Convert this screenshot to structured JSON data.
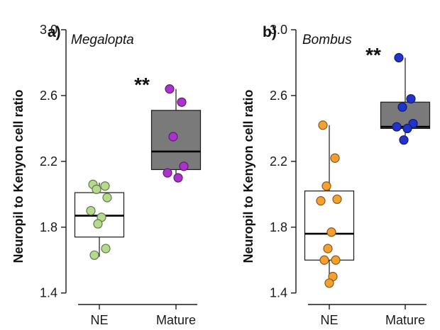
{
  "chart_data": [
    {
      "type": "box",
      "panel_label": "a)",
      "title": "Megalopta",
      "ylabel": "Neuropil to Kenyon cell ratio",
      "xlabel": "",
      "categories": [
        "NE",
        "Mature"
      ],
      "ylim": [
        1.33,
        3.0
      ],
      "yticks": [
        "1.4",
        "1.8",
        "2.2",
        "2.6",
        "3.0"
      ],
      "significance": "**",
      "groups": [
        {
          "name": "NE",
          "box": {
            "min": 1.62,
            "q1": 1.74,
            "median": 1.87,
            "q3": 2.01,
            "max": 2.07
          },
          "fill": "#ffffff",
          "point_color": "#b5d98d",
          "points": [
            2.06,
            2.05,
            2.03,
            1.98,
            1.9,
            1.86,
            1.82,
            1.67,
            1.63
          ]
        },
        {
          "name": "Mature",
          "box": {
            "min": 2.1,
            "q1": 2.15,
            "median": 2.26,
            "q3": 2.51,
            "max": 2.64
          },
          "fill": "#7a7a7a",
          "point_color": "#aa33cc",
          "points": [
            2.64,
            2.56,
            2.35,
            2.17,
            2.13,
            2.1
          ]
        }
      ]
    },
    {
      "type": "box",
      "panel_label": "b)",
      "title": "Bombus",
      "ylabel": "Neuropil to Kenyon cell ratio",
      "xlabel": "",
      "categories": [
        "NE",
        "Mature"
      ],
      "ylim": [
        1.33,
        3.0
      ],
      "yticks": [
        "1.4",
        "1.8",
        "2.2",
        "2.6",
        "3.0"
      ],
      "significance": "**",
      "groups": [
        {
          "name": "NE",
          "box": {
            "min": 1.46,
            "q1": 1.6,
            "median": 1.76,
            "q3": 2.02,
            "max": 2.42
          },
          "fill": "#ffffff",
          "point_color": "#f5a030",
          "points": [
            2.42,
            2.22,
            2.05,
            1.97,
            1.96,
            1.77,
            1.67,
            1.6,
            1.6,
            1.5,
            1.46
          ]
        },
        {
          "name": "Mature",
          "box": {
            "min": 2.33,
            "q1": 2.4,
            "median": 2.41,
            "q3": 2.56,
            "max": 2.83
          },
          "fill": "#7a7a7a",
          "point_color": "#2233cc",
          "points": [
            2.83,
            2.58,
            2.53,
            2.43,
            2.41,
            2.4,
            2.33
          ]
        }
      ]
    }
  ]
}
